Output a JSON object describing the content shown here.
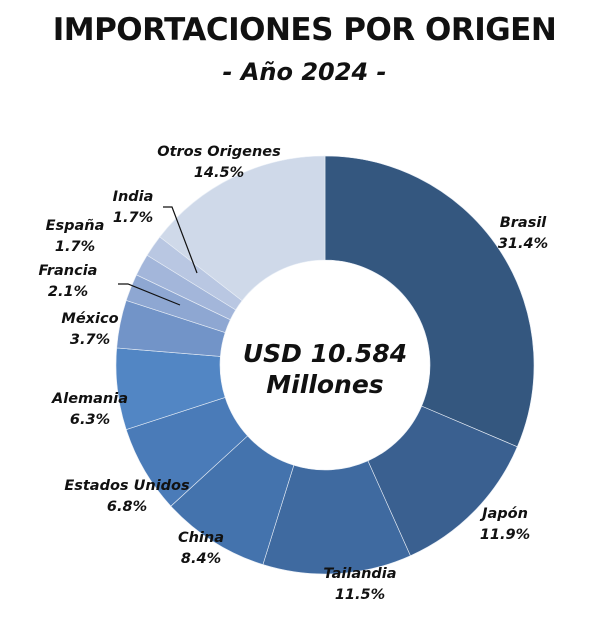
{
  "chart_data": {
    "type": "pie",
    "donut": true,
    "title": "IMPORTACIONES POR ORIGEN",
    "subtitle": "- Año 2024 -",
    "center_label": [
      "USD 10.584",
      "Millones"
    ],
    "categories": [
      "Brasil",
      "Japón",
      "Tailandia",
      "China",
      "Estados Unidos",
      "Alemania",
      "México",
      "Francia",
      "España",
      "India",
      "Otros Origenes"
    ],
    "values": [
      31.4,
      11.9,
      11.5,
      8.4,
      6.8,
      6.3,
      3.7,
      2.1,
      1.7,
      1.7,
      14.5
    ],
    "value_labels": [
      "31.4%",
      "11.9%",
      "11.5%",
      "8.4%",
      "6.8%",
      "6.3%",
      "3.7%",
      "2.1%",
      "1.7%",
      "1.7%",
      "14.5%"
    ],
    "colors": [
      "#34577f",
      "#3a6090",
      "#3f6aa0",
      "#4473ad",
      "#4a7bb8",
      "#5286c4",
      "#7294c8",
      "#8ea7d2",
      "#a3b6da",
      "#b9c7e2",
      "#cfd9e9"
    ],
    "start": "top",
    "direction": "clockwise"
  }
}
